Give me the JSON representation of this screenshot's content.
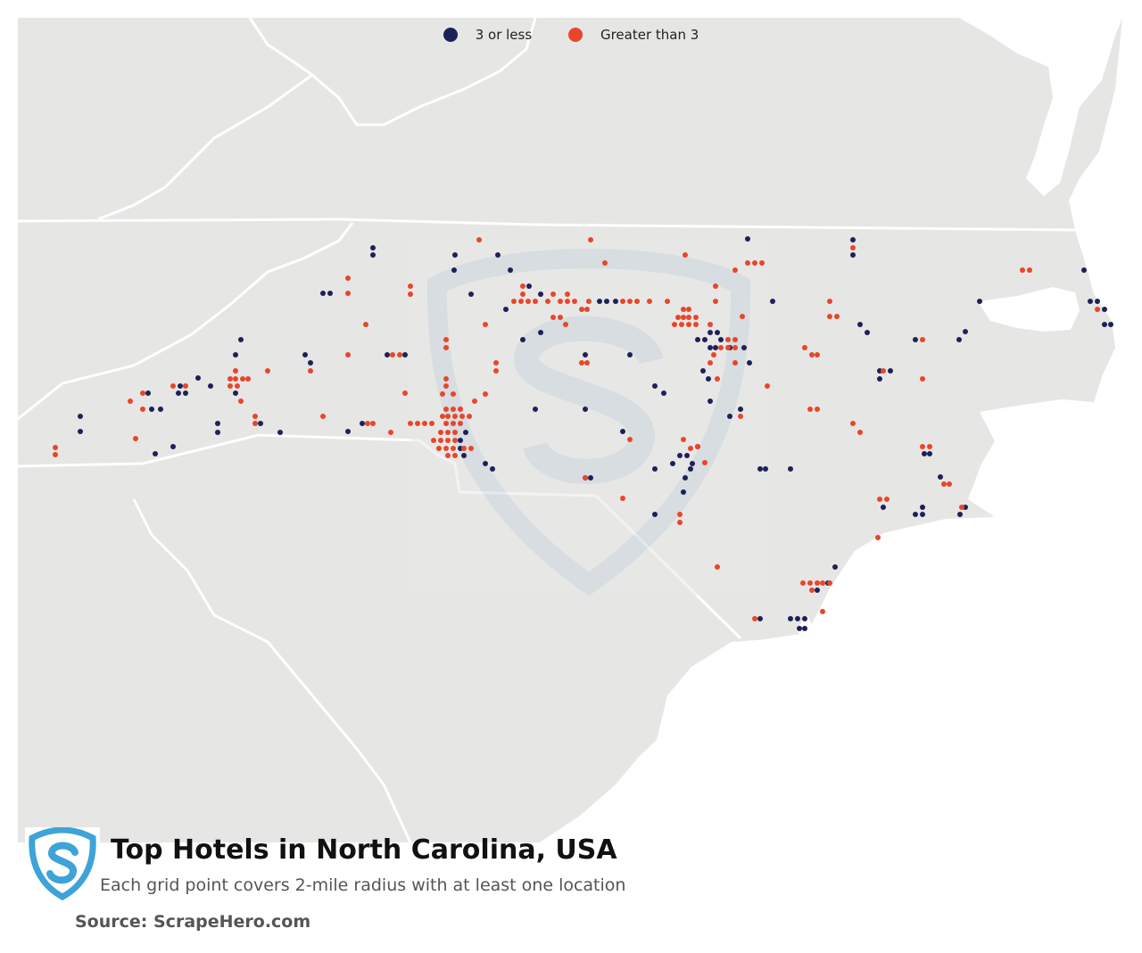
{
  "title": "Top Hotels in North Carolina, USA",
  "subtitle": "Each grid point covers 2-mile radius with at least one location",
  "source": "Source: ScrapeHero.com",
  "legend": [
    {
      "label": "3 or less",
      "color": "#1c2258"
    },
    {
      "label": "Greater than 3",
      "color": "#e8462a"
    }
  ],
  "colors": {
    "land": "#e6e6e4",
    "water": "#ffffff",
    "border": "#ffffff",
    "watermark": "#c9d6e0",
    "logo": "#3ea3d8"
  },
  "icons": {
    "logo": "scrapehero-shield-icon",
    "watermark": "scrapehero-shield-watermark-icon"
  },
  "points": {
    "low": [
      [
        418,
        278
      ],
      [
        418,
        286
      ],
      [
        510,
        286
      ],
      [
        558,
        286
      ],
      [
        509,
        303
      ],
      [
        572,
        303
      ],
      [
        593,
        321
      ],
      [
        528,
        330
      ],
      [
        362,
        329
      ],
      [
        370,
        329
      ],
      [
        606,
        330
      ],
      [
        567,
        347
      ],
      [
        672,
        338
      ],
      [
        680,
        338
      ],
      [
        690,
        338
      ],
      [
        838,
        268
      ],
      [
        866,
        338
      ],
      [
        956,
        269
      ],
      [
        956,
        286
      ],
      [
        1098,
        338
      ],
      [
        1215,
        303
      ],
      [
        1222,
        338
      ],
      [
        1230,
        338
      ],
      [
        1238,
        347
      ],
      [
        1238,
        364
      ],
      [
        1245,
        364
      ],
      [
        270,
        381
      ],
      [
        964,
        364
      ],
      [
        972,
        373
      ],
      [
        1082,
        372
      ],
      [
        1075,
        381
      ],
      [
        1026,
        381
      ],
      [
        606,
        373
      ],
      [
        586,
        381
      ],
      [
        782,
        381
      ],
      [
        790,
        381
      ],
      [
        796,
        373
      ],
      [
        804,
        373
      ],
      [
        808,
        381
      ],
      [
        342,
        398
      ],
      [
        348,
        407
      ],
      [
        434,
        398
      ],
      [
        454,
        398
      ],
      [
        264,
        398
      ],
      [
        656,
        398
      ],
      [
        706,
        398
      ],
      [
        796,
        390
      ],
      [
        802,
        390
      ],
      [
        818,
        390
      ],
      [
        834,
        390
      ],
      [
        840,
        407
      ],
      [
        788,
        416
      ],
      [
        794,
        425
      ],
      [
        986,
        416
      ],
      [
        998,
        416
      ],
      [
        986,
        425
      ],
      [
        222,
        424
      ],
      [
        236,
        433
      ],
      [
        202,
        433
      ],
      [
        208,
        441
      ],
      [
        200,
        441
      ],
      [
        264,
        441
      ],
      [
        166,
        441
      ],
      [
        170,
        459
      ],
      [
        180,
        459
      ],
      [
        90,
        467
      ],
      [
        90,
        484
      ],
      [
        734,
        433
      ],
      [
        744,
        441
      ],
      [
        796,
        450
      ],
      [
        600,
        459
      ],
      [
        656,
        459
      ],
      [
        818,
        467
      ],
      [
        830,
        459
      ],
      [
        522,
        485
      ],
      [
        516,
        494
      ],
      [
        516,
        503
      ],
      [
        520,
        511
      ],
      [
        244,
        475
      ],
      [
        292,
        475
      ],
      [
        244,
        485
      ],
      [
        314,
        485
      ],
      [
        406,
        475
      ],
      [
        390,
        484
      ],
      [
        174,
        509
      ],
      [
        194,
        501
      ],
      [
        544,
        520
      ],
      [
        552,
        526
      ],
      [
        656,
        536
      ],
      [
        662,
        536
      ],
      [
        698,
        484
      ],
      [
        782,
        501
      ],
      [
        762,
        511
      ],
      [
        770,
        511
      ],
      [
        776,
        520
      ],
      [
        754,
        520
      ],
      [
        734,
        526
      ],
      [
        774,
        526
      ],
      [
        768,
        536
      ],
      [
        852,
        526
      ],
      [
        858,
        526
      ],
      [
        886,
        526
      ],
      [
        1042,
        509
      ],
      [
        1036,
        509
      ],
      [
        1054,
        535
      ],
      [
        1082,
        569
      ],
      [
        1076,
        577
      ],
      [
        1034,
        569
      ],
      [
        1026,
        577
      ],
      [
        1034,
        577
      ],
      [
        990,
        569
      ],
      [
        766,
        552
      ],
      [
        734,
        577
      ],
      [
        936,
        636
      ],
      [
        928,
        654
      ],
      [
        886,
        694
      ],
      [
        894,
        694
      ],
      [
        902,
        694
      ],
      [
        896,
        705
      ],
      [
        902,
        705
      ],
      [
        916,
        662
      ],
      [
        852,
        694
      ]
    ],
    "high": [
      [
        537,
        269
      ],
      [
        662,
        269
      ],
      [
        768,
        286
      ],
      [
        678,
        295
      ],
      [
        824,
        303
      ],
      [
        838,
        295
      ],
      [
        846,
        295
      ],
      [
        854,
        295
      ],
      [
        1146,
        303
      ],
      [
        1154,
        303
      ],
      [
        390,
        312
      ],
      [
        390,
        329
      ],
      [
        460,
        321
      ],
      [
        460,
        330
      ],
      [
        586,
        321
      ],
      [
        586,
        330
      ],
      [
        576,
        338
      ],
      [
        584,
        338
      ],
      [
        592,
        338
      ],
      [
        600,
        338
      ],
      [
        614,
        338
      ],
      [
        620,
        330
      ],
      [
        636,
        330
      ],
      [
        628,
        338
      ],
      [
        636,
        338
      ],
      [
        644,
        338
      ],
      [
        660,
        338
      ],
      [
        698,
        338
      ],
      [
        706,
        338
      ],
      [
        714,
        338
      ],
      [
        728,
        338
      ],
      [
        748,
        338
      ],
      [
        772,
        347
      ],
      [
        766,
        347
      ],
      [
        760,
        356
      ],
      [
        766,
        356
      ],
      [
        772,
        356
      ],
      [
        780,
        356
      ],
      [
        756,
        364
      ],
      [
        764,
        364
      ],
      [
        772,
        364
      ],
      [
        780,
        364
      ],
      [
        796,
        364
      ],
      [
        802,
        338
      ],
      [
        802,
        321
      ],
      [
        832,
        355
      ],
      [
        544,
        364
      ],
      [
        500,
        381
      ],
      [
        500,
        390
      ],
      [
        620,
        356
      ],
      [
        628,
        356
      ],
      [
        634,
        364
      ],
      [
        652,
        347
      ],
      [
        658,
        347
      ],
      [
        930,
        338
      ],
      [
        930,
        355
      ],
      [
        938,
        355
      ],
      [
        956,
        278
      ],
      [
        410,
        364
      ],
      [
        500,
        425
      ],
      [
        500,
        433
      ],
      [
        496,
        442
      ],
      [
        508,
        442
      ],
      [
        544,
        442
      ],
      [
        532,
        450
      ],
      [
        500,
        459
      ],
      [
        508,
        459
      ],
      [
        516,
        459
      ],
      [
        496,
        467
      ],
      [
        502,
        467
      ],
      [
        510,
        467
      ],
      [
        518,
        467
      ],
      [
        526,
        467
      ],
      [
        476,
        475
      ],
      [
        484,
        475
      ],
      [
        500,
        475
      ],
      [
        508,
        475
      ],
      [
        516,
        475
      ],
      [
        494,
        485
      ],
      [
        502,
        485
      ],
      [
        510,
        485
      ],
      [
        486,
        494
      ],
      [
        494,
        494
      ],
      [
        502,
        494
      ],
      [
        510,
        494
      ],
      [
        492,
        503
      ],
      [
        500,
        503
      ],
      [
        508,
        503
      ],
      [
        520,
        503
      ],
      [
        528,
        503
      ],
      [
        502,
        511
      ],
      [
        510,
        511
      ],
      [
        556,
        407
      ],
      [
        556,
        416
      ],
      [
        652,
        407
      ],
      [
        658,
        407
      ],
      [
        440,
        398
      ],
      [
        448,
        398
      ],
      [
        390,
        398
      ],
      [
        348,
        416
      ],
      [
        300,
        416
      ],
      [
        264,
        416
      ],
      [
        258,
        425
      ],
      [
        264,
        425
      ],
      [
        272,
        425
      ],
      [
        278,
        425
      ],
      [
        258,
        433
      ],
      [
        266,
        433
      ],
      [
        270,
        450
      ],
      [
        286,
        467
      ],
      [
        286,
        475
      ],
      [
        194,
        433
      ],
      [
        208,
        433
      ],
      [
        160,
        441
      ],
      [
        146,
        450
      ],
      [
        160,
        459
      ],
      [
        62,
        502
      ],
      [
        62,
        510
      ],
      [
        152,
        492
      ],
      [
        362,
        467
      ],
      [
        412,
        475
      ],
      [
        418,
        475
      ],
      [
        438,
        485
      ],
      [
        454,
        441
      ],
      [
        460,
        475
      ],
      [
        468,
        475
      ],
      [
        816,
        381
      ],
      [
        824,
        381
      ],
      [
        816,
        390
      ],
      [
        808,
        390
      ],
      [
        824,
        390
      ],
      [
        800,
        398
      ],
      [
        796,
        407
      ],
      [
        824,
        407
      ],
      [
        804,
        425
      ],
      [
        830,
        467
      ],
      [
        766,
        493
      ],
      [
        774,
        503
      ],
      [
        782,
        501
      ],
      [
        790,
        519
      ],
      [
        902,
        390
      ],
      [
        910,
        398
      ],
      [
        916,
        398
      ],
      [
        860,
        433
      ],
      [
        990,
        416
      ],
      [
        1034,
        381
      ],
      [
        1034,
        425
      ],
      [
        908,
        459
      ],
      [
        916,
        459
      ],
      [
        956,
        475
      ],
      [
        964,
        485
      ],
      [
        1034,
        501
      ],
      [
        1042,
        501
      ],
      [
        1058,
        543
      ],
      [
        1064,
        543
      ],
      [
        1078,
        569
      ],
      [
        986,
        560
      ],
      [
        994,
        560
      ],
      [
        984,
        603
      ],
      [
        706,
        493
      ],
      [
        698,
        559
      ],
      [
        656,
        536
      ],
      [
        762,
        577
      ],
      [
        762,
        586
      ],
      [
        804,
        636
      ],
      [
        900,
        654
      ],
      [
        908,
        654
      ],
      [
        916,
        654
      ],
      [
        922,
        654
      ],
      [
        930,
        654
      ],
      [
        910,
        662
      ],
      [
        922,
        686
      ],
      [
        846,
        694
      ],
      [
        1230,
        347
      ]
    ]
  }
}
